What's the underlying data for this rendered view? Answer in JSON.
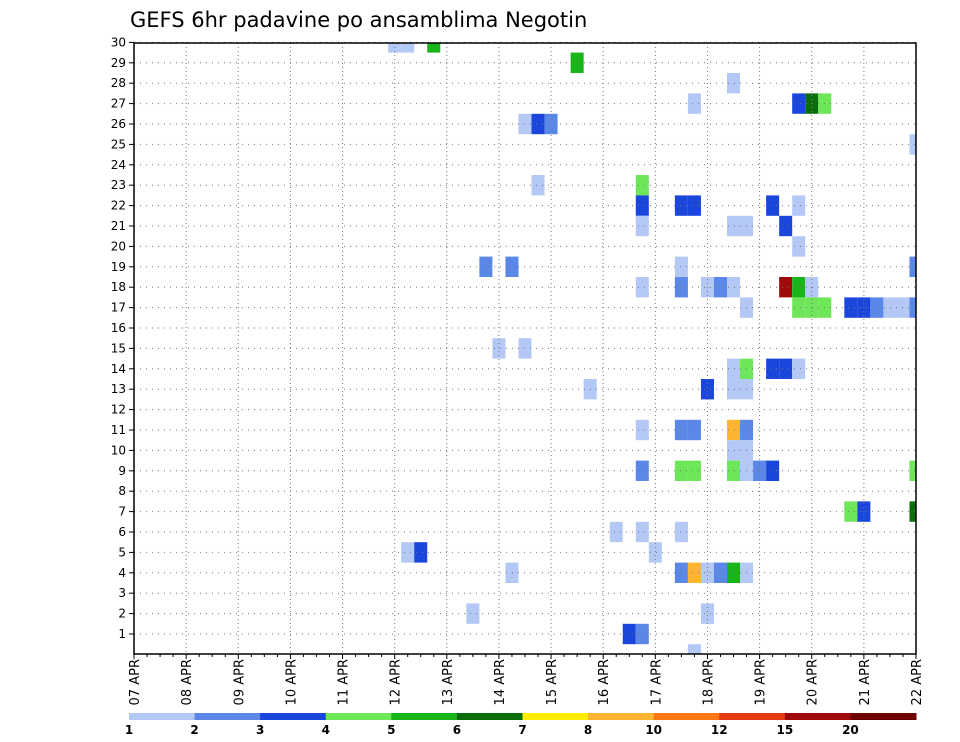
{
  "chart_data": {
    "type": "heatmap",
    "title": "GEFS 6hr padavine po ansamblima Negotin",
    "y_ticks": [
      "1",
      "2",
      "3",
      "4",
      "5",
      "6",
      "7",
      "8",
      "9",
      "10",
      "11",
      "12",
      "13",
      "14",
      "15",
      "16",
      "17",
      "18",
      "19",
      "20",
      "21",
      "22",
      "23",
      "24",
      "25",
      "26",
      "27",
      "28",
      "29",
      "30"
    ],
    "x_ticks": [
      "07 APR",
      "08 APR",
      "09 APR",
      "10 APR",
      "11 APR",
      "12 APR",
      "13 APR",
      "14 APR",
      "15 APR",
      "16 APR",
      "17 APR",
      "18 APR",
      "19 APR",
      "20 APR",
      "21 APR",
      "22 APR"
    ],
    "x_range_days": [
      0,
      15
    ],
    "colorbar": {
      "colors": [
        "#b4c8f5",
        "#5a87e8",
        "#1a46dc",
        "#6ee65a",
        "#19b419",
        "#0a6e0a",
        "#ffee00",
        "#ffb432",
        "#ff7814",
        "#e63c14",
        "#a00a0a",
        "#6e0000"
      ],
      "labels": [
        "1",
        "2",
        "3",
        "4",
        "5",
        "6",
        "7",
        "8",
        "10",
        "12",
        "15",
        "20"
      ]
    },
    "cells": [
      {
        "m": 30,
        "t": 5.0,
        "c": 0
      },
      {
        "m": 30,
        "t": 5.25,
        "c": 0
      },
      {
        "m": 30,
        "t": 5.75,
        "c": 4
      },
      {
        "m": 29,
        "t": 8.5,
        "c": 4
      },
      {
        "m": 28,
        "t": 11.5,
        "c": 0
      },
      {
        "m": 27,
        "t": 10.75,
        "c": 0
      },
      {
        "m": 27,
        "t": 12.75,
        "c": 2
      },
      {
        "m": 27,
        "t": 13.0,
        "c": 5
      },
      {
        "m": 27,
        "t": 13.25,
        "c": 3
      },
      {
        "m": 26,
        "t": 7.5,
        "c": 0
      },
      {
        "m": 26,
        "t": 7.75,
        "c": 2
      },
      {
        "m": 26,
        "t": 8.0,
        "c": 1
      },
      {
        "m": 25,
        "t": 15.0,
        "c": 0
      },
      {
        "m": 23,
        "t": 7.75,
        "c": 0
      },
      {
        "m": 23,
        "t": 9.75,
        "c": 3
      },
      {
        "m": 22,
        "t": 9.75,
        "c": 2
      },
      {
        "m": 22,
        "t": 10.5,
        "c": 2
      },
      {
        "m": 22,
        "t": 10.75,
        "c": 2
      },
      {
        "m": 22,
        "t": 12.25,
        "c": 2
      },
      {
        "m": 22,
        "t": 12.75,
        "c": 0
      },
      {
        "m": 21,
        "t": 9.75,
        "c": 0
      },
      {
        "m": 21,
        "t": 11.5,
        "c": 0
      },
      {
        "m": 21,
        "t": 11.75,
        "c": 0
      },
      {
        "m": 21,
        "t": 12.5,
        "c": 2
      },
      {
        "m": 20,
        "t": 12.75,
        "c": 0
      },
      {
        "m": 19,
        "t": 6.75,
        "c": 1
      },
      {
        "m": 19,
        "t": 7.25,
        "c": 1
      },
      {
        "m": 19,
        "t": 10.5,
        "c": 0
      },
      {
        "m": 19,
        "t": 15.0,
        "c": 1
      },
      {
        "m": 18,
        "t": 9.75,
        "c": 0
      },
      {
        "m": 18,
        "t": 10.5,
        "c": 1
      },
      {
        "m": 18,
        "t": 11.0,
        "c": 0
      },
      {
        "m": 18,
        "t": 11.25,
        "c": 1
      },
      {
        "m": 18,
        "t": 11.5,
        "c": 0
      },
      {
        "m": 18,
        "t": 12.5,
        "c": 10
      },
      {
        "m": 18,
        "t": 12.75,
        "c": 4
      },
      {
        "m": 18,
        "t": 13.0,
        "c": 0
      },
      {
        "m": 17,
        "t": 11.75,
        "c": 0
      },
      {
        "m": 17,
        "t": 12.75,
        "c": 3
      },
      {
        "m": 17,
        "t": 13.0,
        "c": 3
      },
      {
        "m": 17,
        "t": 13.25,
        "c": 3
      },
      {
        "m": 17,
        "t": 13.75,
        "c": 2
      },
      {
        "m": 17,
        "t": 14.0,
        "c": 2
      },
      {
        "m": 17,
        "t": 14.25,
        "c": 1
      },
      {
        "m": 17,
        "t": 14.5,
        "c": 0
      },
      {
        "m": 17,
        "t": 14.75,
        "c": 0
      },
      {
        "m": 17,
        "t": 15.0,
        "c": 1
      },
      {
        "m": 15,
        "t": 7.0,
        "c": 0
      },
      {
        "m": 15,
        "t": 7.5,
        "c": 0
      },
      {
        "m": 14,
        "t": 11.5,
        "c": 0
      },
      {
        "m": 14,
        "t": 11.75,
        "c": 3
      },
      {
        "m": 14,
        "t": 12.25,
        "c": 2
      },
      {
        "m": 14,
        "t": 12.5,
        "c": 2
      },
      {
        "m": 14,
        "t": 12.75,
        "c": 0
      },
      {
        "m": 13,
        "t": 8.75,
        "c": 0
      },
      {
        "m": 13,
        "t": 11.0,
        "c": 2
      },
      {
        "m": 13,
        "t": 11.5,
        "c": 0
      },
      {
        "m": 13,
        "t": 11.75,
        "c": 0
      },
      {
        "m": 11,
        "t": 9.75,
        "c": 0
      },
      {
        "m": 11,
        "t": 10.5,
        "c": 1
      },
      {
        "m": 11,
        "t": 10.75,
        "c": 1
      },
      {
        "m": 11,
        "t": 11.5,
        "c": 7
      },
      {
        "m": 11,
        "t": 11.75,
        "c": 1
      },
      {
        "m": 10,
        "t": 11.5,
        "c": 0
      },
      {
        "m": 10,
        "t": 11.75,
        "c": 0
      },
      {
        "m": 9,
        "t": 9.75,
        "c": 1
      },
      {
        "m": 9,
        "t": 10.5,
        "c": 3
      },
      {
        "m": 9,
        "t": 10.75,
        "c": 3
      },
      {
        "m": 9,
        "t": 11.5,
        "c": 3
      },
      {
        "m": 9,
        "t": 11.75,
        "c": 0
      },
      {
        "m": 9,
        "t": 12.0,
        "c": 1
      },
      {
        "m": 9,
        "t": 12.25,
        "c": 2
      },
      {
        "m": 9,
        "t": 15.0,
        "c": 3
      },
      {
        "m": 7,
        "t": 13.75,
        "c": 3
      },
      {
        "m": 7,
        "t": 14.0,
        "c": 2
      },
      {
        "m": 7,
        "t": 15.0,
        "c": 5
      },
      {
        "m": 6,
        "t": 9.25,
        "c": 0
      },
      {
        "m": 6,
        "t": 9.75,
        "c": 0
      },
      {
        "m": 6,
        "t": 10.5,
        "c": 0
      },
      {
        "m": 5,
        "t": 5.25,
        "c": 0
      },
      {
        "m": 5,
        "t": 5.5,
        "c": 2
      },
      {
        "m": 5,
        "t": 10.0,
        "c": 0
      },
      {
        "m": 4,
        "t": 7.25,
        "c": 0
      },
      {
        "m": 4,
        "t": 10.5,
        "c": 1
      },
      {
        "m": 4,
        "t": 10.75,
        "c": 7
      },
      {
        "m": 4,
        "t": 11.0,
        "c": 0
      },
      {
        "m": 4,
        "t": 11.25,
        "c": 1
      },
      {
        "m": 4,
        "t": 11.5,
        "c": 4
      },
      {
        "m": 4,
        "t": 11.75,
        "c": 0
      },
      {
        "m": 2,
        "t": 6.5,
        "c": 0
      },
      {
        "m": 2,
        "t": 11.0,
        "c": 0
      },
      {
        "m": 1,
        "t": 9.5,
        "c": 2
      },
      {
        "m": 1,
        "t": 9.75,
        "c": 1
      },
      {
        "m": 0,
        "t": 10.75,
        "c": 0
      }
    ]
  }
}
